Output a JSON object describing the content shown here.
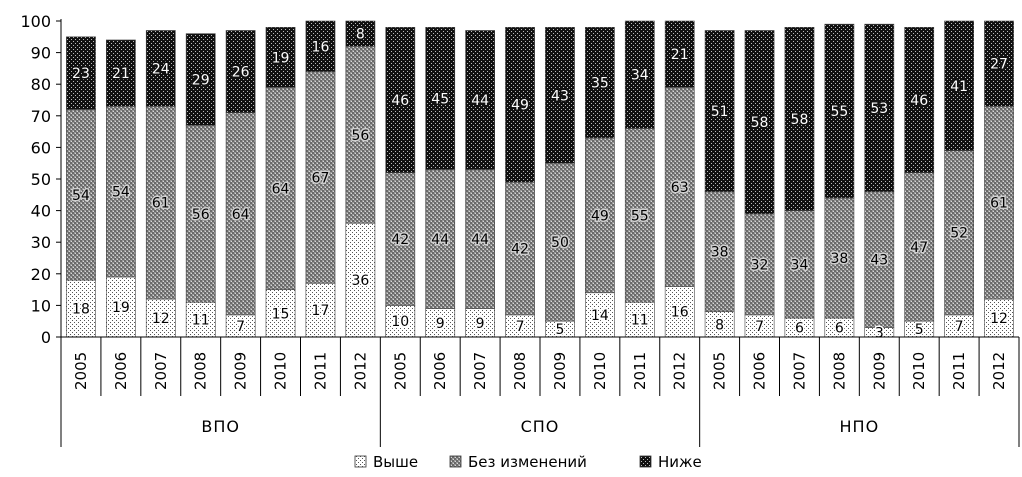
{
  "chart_data": {
    "type": "bar",
    "stacked": true,
    "title": "",
    "xlabel": "",
    "ylabel": "",
    "ylim": [
      0,
      100
    ],
    "yticks": [
      0,
      10,
      20,
      30,
      40,
      50,
      60,
      70,
      80,
      90,
      100
    ],
    "groups": [
      {
        "name": "ВПО",
        "categories": [
          "2005",
          "2006",
          "2007",
          "2008",
          "2009",
          "2010",
          "2011",
          "2012"
        ]
      },
      {
        "name": "СПО",
        "categories": [
          "2005",
          "2006",
          "2007",
          "2008",
          "2009",
          "2010",
          "2011",
          "2012"
        ]
      },
      {
        "name": "НПО",
        "categories": [
          "2005",
          "2006",
          "2007",
          "2008",
          "2009",
          "2010",
          "2011",
          "2012"
        ]
      }
    ],
    "series": [
      {
        "name": "Выше",
        "pattern": "light-dots",
        "values": [
          18,
          19,
          12,
          11,
          7,
          15,
          17,
          36,
          10,
          9,
          9,
          7,
          5,
          14,
          11,
          16,
          8,
          7,
          6,
          6,
          3,
          5,
          7,
          12
        ]
      },
      {
        "name": "Без изменений",
        "pattern": "grey-checker",
        "values": [
          54,
          54,
          61,
          56,
          64,
          64,
          67,
          56,
          42,
          44,
          44,
          42,
          50,
          49,
          55,
          63,
          38,
          32,
          34,
          38,
          43,
          47,
          52,
          61
        ]
      },
      {
        "name": "Ниже",
        "pattern": "dark-dots",
        "values": [
          23,
          21,
          24,
          29,
          26,
          19,
          16,
          8,
          46,
          45,
          44,
          49,
          43,
          35,
          34,
          21,
          51,
          58,
          58,
          55,
          53,
          46,
          41,
          27
        ]
      }
    ],
    "legend": "bottom-center",
    "grid": false
  }
}
